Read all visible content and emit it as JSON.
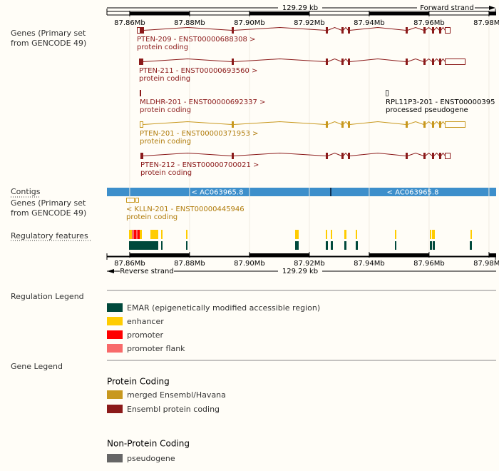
{
  "ruler": {
    "scale_label": "129.29 kb",
    "forward_strand": "Forward strand",
    "reverse_strand": "Reverse strand",
    "xlim": [
      87.8524,
      87.9824
    ],
    "ticks": [
      {
        "value": 87.86,
        "label": "87.86Mb"
      },
      {
        "value": 87.88,
        "label": "87.88Mb"
      },
      {
        "value": 87.9,
        "label": "87.90Mb"
      },
      {
        "value": 87.92,
        "label": "87.92Mb"
      },
      {
        "value": 87.94,
        "label": "87.94Mb"
      },
      {
        "value": 87.96,
        "label": "87.96Mb"
      },
      {
        "value": 87.98,
        "label": "87.98Mb"
      }
    ]
  },
  "tracks": {
    "genes_forward": [
      "Genes (Primary set",
      "from GENCODE 49)"
    ],
    "contigs": "Contigs",
    "genes_reverse": [
      "Genes (Primary set",
      "from GENCODE 49)"
    ],
    "regulatory": "Regulatory features"
  },
  "transcripts": [
    {
      "name": "PTEN-209 - ENST00000688308 >",
      "biotype": "protein coding"
    },
    {
      "name": "PTEN-211 - ENST00000693560 >",
      "biotype": "protein coding"
    },
    {
      "name": "MLDHR-201 - ENST00000692337 >",
      "biotype": "protein coding"
    },
    {
      "name": "RPL11P3-201 - ENST00000395",
      "biotype": "processed pseudogene"
    },
    {
      "name": "PTEN-201 - ENST00000371953 >",
      "biotype": "protein coding"
    },
    {
      "name": "PTEN-212 - ENST00000700021 >",
      "biotype": "protein coding"
    }
  ],
  "contigs": [
    "< AC063965.8",
    "< AC063965.8"
  ],
  "reverse_transcripts": [
    {
      "name": "< KLLN-201 - ENST00000445946",
      "biotype": "protein coding"
    }
  ],
  "regulation_legend": {
    "title": "Regulation Legend",
    "items": [
      "EMAR (epigenetically modified accessible region)",
      "enhancer",
      "promoter",
      "promoter flank"
    ]
  },
  "gene_legend": {
    "title": "Gene Legend",
    "protein_coding": {
      "title": "Protein Coding",
      "items": [
        "merged Ensembl/Havana",
        "Ensembl protein coding"
      ]
    },
    "non_protein_coding": {
      "title": "Non-Protein Coding",
      "items": [
        "pseudogene"
      ]
    }
  }
}
